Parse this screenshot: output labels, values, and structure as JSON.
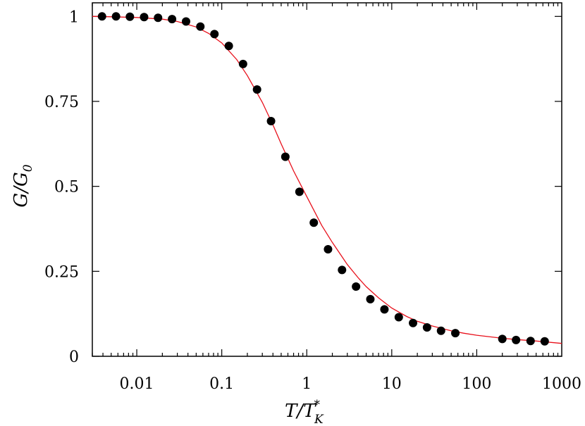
{
  "chart_data": {
    "type": "scatter",
    "xscale": "log",
    "xlim": [
      0.003,
      1000
    ],
    "ylim": [
      0,
      1.04
    ],
    "grid": false,
    "legend": "none",
    "xlabel": {
      "main": "T/T",
      "sub": "K",
      "sup": "*"
    },
    "ylabel": {
      "main": "G/G",
      "sub": "0"
    },
    "x_ticks": [
      {
        "value": 0.01,
        "label": "0.01"
      },
      {
        "value": 0.1,
        "label": "0.1"
      },
      {
        "value": 1,
        "label": "1"
      },
      {
        "value": 10,
        "label": "10"
      },
      {
        "value": 100,
        "label": "100"
      },
      {
        "value": 1000,
        "label": "1000"
      }
    ],
    "y_ticks": [
      {
        "value": 0,
        "label": "0"
      },
      {
        "value": 0.25,
        "label": "0.25"
      },
      {
        "value": 0.5,
        "label": "0.5"
      },
      {
        "value": 0.75,
        "label": "0.75"
      },
      {
        "value": 1,
        "label": "1"
      }
    ],
    "series": [
      {
        "type": "scatter",
        "color": "#000000",
        "x": [
          0.0039,
          0.0057,
          0.0083,
          0.0122,
          0.0178,
          0.026,
          0.038,
          0.056,
          0.082,
          0.121,
          0.178,
          0.26,
          0.38,
          0.56,
          0.82,
          1.21,
          1.78,
          2.6,
          3.8,
          5.6,
          8.2,
          12.1,
          17.8,
          26,
          38,
          56,
          200,
          290,
          430,
          630
        ],
        "y": [
          1.0,
          1.0,
          0.999,
          0.998,
          0.996,
          0.992,
          0.985,
          0.97,
          0.948,
          0.913,
          0.86,
          0.785,
          0.692,
          0.587,
          0.484,
          0.393,
          0.315,
          0.254,
          0.205,
          0.168,
          0.138,
          0.115,
          0.098,
          0.085,
          0.075,
          0.068,
          0.051,
          0.048,
          0.045,
          0.044
        ]
      },
      {
        "type": "line",
        "color": "#e8101b",
        "x": [
          0.003,
          0.005,
          0.01,
          0.02,
          0.03,
          0.05,
          0.07,
          0.1,
          0.15,
          0.2,
          0.3,
          0.4,
          0.5,
          0.7,
          1,
          1.5,
          2,
          3,
          4,
          5,
          7,
          10,
          15,
          20,
          30,
          50,
          70,
          100,
          200,
          300,
          500,
          1000
        ],
        "y": [
          1.0,
          0.999,
          0.997,
          0.992,
          0.985,
          0.969,
          0.95,
          0.922,
          0.873,
          0.826,
          0.747,
          0.681,
          0.625,
          0.545,
          0.47,
          0.385,
          0.335,
          0.27,
          0.232,
          0.205,
          0.172,
          0.142,
          0.117,
          0.103,
          0.089,
          0.075,
          0.068,
          0.062,
          0.053,
          0.049,
          0.045,
          0.038
        ]
      }
    ]
  }
}
